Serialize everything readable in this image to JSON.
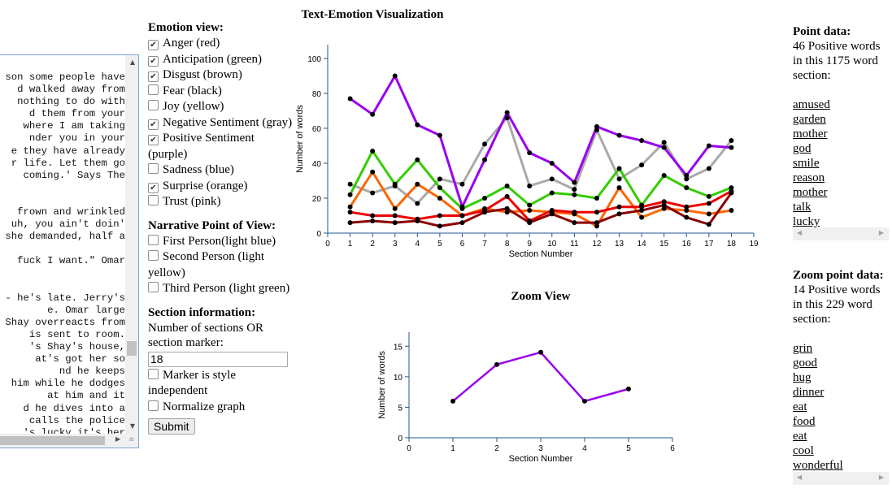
{
  "text_lines": [
    "son some people have",
    "d walked away from",
    "nothing to do with",
    "d them from your",
    " where I am taking",
    "nder you in your",
    "e they have already",
    "r life. Let them go",
    " coming.' Says The",
    "",
    "",
    "frown and wrinkled",
    " uh, you ain't doin'",
    "she demanded, half a",
    "",
    "fuck I want.\" Omar",
    "",
    "",
    "- he's late. Jerry's",
    "e. Omar large",
    "Shay overreacts from",
    " is sent to room.",
    "'s Shay's house,",
    "at's got her so",
    "nd he keeps",
    " him while he dodges",
    " at him and it",
    "d he dives into a",
    " calls the police",
    "'s lucky it's her"
  ],
  "controls": {
    "emotion_heading": "Emotion view:",
    "emotions": [
      {
        "label": "Anger (red)",
        "checked": true
      },
      {
        "label": "Anticipation (green)",
        "checked": true
      },
      {
        "label": "Disgust (brown)",
        "checked": true
      },
      {
        "label": "Fear (black)",
        "checked": false
      },
      {
        "label": "Joy (yellow)",
        "checked": false
      },
      {
        "label": "Negative Sentiment (gray)",
        "checked": true
      },
      {
        "label": "Positive Sentiment (purple)",
        "checked": true
      },
      {
        "label": "Sadness (blue)",
        "checked": false
      },
      {
        "label": "Surprise (orange)",
        "checked": true
      },
      {
        "label": "Trust (pink)",
        "checked": false
      }
    ],
    "pov_heading": "Narrative Point of View:",
    "pov": [
      {
        "label": "First Person(light blue)",
        "checked": false
      },
      {
        "label": "Second Person (light yellow)",
        "checked": false
      },
      {
        "label": "Third Person (light green)",
        "checked": false
      }
    ],
    "section_heading": "Section information:",
    "section_prompt": "Number of sections OR section marker:",
    "section_value": "18",
    "marker_label": "Marker is style independent",
    "marker_checked": false,
    "normalize_label": "Normalize graph",
    "normalize_checked": false,
    "submit_label": "Submit"
  },
  "point_panel": {
    "heading": "Point data:",
    "summary": "46 Positive words in this 1175 word section:",
    "words": [
      "amused",
      "garden",
      "mother",
      "god",
      "smile",
      "reason",
      "mother",
      "talk",
      "lucky"
    ]
  },
  "zoom_panel": {
    "heading": "Zoom point data:",
    "summary": "14 Positive words in this 229 word section:",
    "words": [
      "grin",
      "good",
      "hug",
      "dinner",
      "eat",
      "food",
      "eat",
      "cool",
      "wonderful"
    ]
  },
  "chart_data": [
    {
      "type": "line",
      "title": "Text-Emotion Visualization",
      "xlabel": "Section Number",
      "ylabel": "Number of words",
      "xlim": [
        0,
        19
      ],
      "ylim": [
        0,
        100
      ],
      "xticks": [
        0,
        1,
        2,
        3,
        4,
        5,
        6,
        7,
        8,
        9,
        10,
        11,
        12,
        13,
        14,
        15,
        16,
        17,
        18,
        19
      ],
      "yticks": [
        0,
        20,
        40,
        60,
        80,
        100
      ],
      "x": [
        1,
        2,
        3,
        4,
        5,
        6,
        7,
        8,
        9,
        10,
        11,
        12,
        13,
        14,
        15,
        16,
        17,
        18
      ],
      "series": [
        {
          "color": "#aaaaaa",
          "values": [
            28,
            23,
            27,
            17,
            31,
            28,
            51,
            66,
            27,
            31,
            25,
            59,
            31,
            39,
            52,
            31,
            37,
            53
          ]
        },
        {
          "color": "#33cc00",
          "values": [
            22,
            47,
            28,
            42,
            26,
            14,
            20,
            27,
            16,
            23,
            22,
            20,
            37,
            16,
            33,
            26,
            21,
            26
          ]
        },
        {
          "color": "#ff6600",
          "values": [
            15,
            35,
            14,
            28,
            20,
            10,
            14,
            12,
            13,
            12,
            11,
            4,
            26,
            9,
            14,
            13,
            11,
            13
          ]
        },
        {
          "color": "#ee0000",
          "values": [
            12,
            10,
            10,
            8,
            10,
            10,
            13,
            21,
            7,
            13,
            12,
            12,
            15,
            15,
            18,
            15,
            17,
            24
          ]
        },
        {
          "color": "#8b0000",
          "values": [
            6,
            7,
            6,
            7,
            4,
            6,
            12,
            14,
            6,
            11,
            6,
            6,
            11,
            13,
            16,
            9,
            5,
            23
          ]
        },
        {
          "color": "#9900ee",
          "values": [
            77,
            68,
            90,
            62,
            56,
            15,
            42,
            69,
            46,
            40,
            29,
            61,
            56,
            53,
            49,
            33,
            50,
            49
          ]
        }
      ]
    },
    {
      "type": "line",
      "title": "Zoom View",
      "xlabel": "Section Number",
      "ylabel": "Number of words",
      "xlim": [
        0,
        6
      ],
      "ylim": [
        0,
        16.5
      ],
      "xticks": [
        0,
        1,
        2,
        3,
        4,
        5,
        6
      ],
      "yticks": [
        0,
        5,
        10,
        15
      ],
      "x": [
        1,
        2,
        3,
        4,
        5
      ],
      "series": [
        {
          "color": "#9900ee",
          "values": [
            6,
            12,
            14,
            6,
            8
          ]
        }
      ]
    }
  ]
}
